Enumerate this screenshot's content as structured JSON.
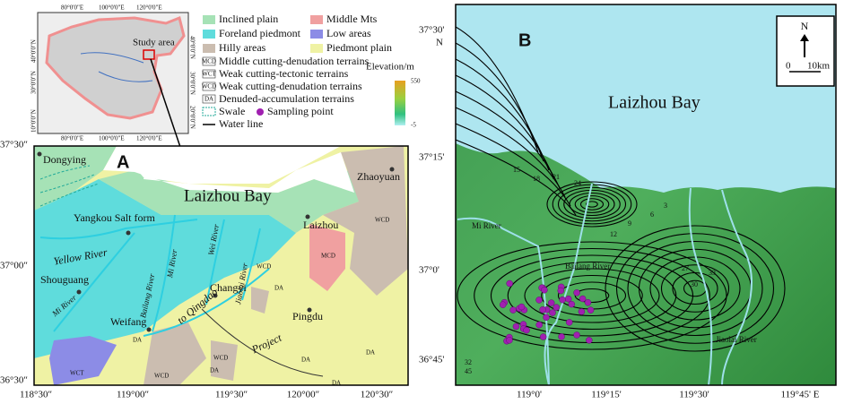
{
  "panel_a": {
    "label": "A",
    "inset": {
      "study_area": "Study area",
      "lon_labels": [
        "80°0'0\"E",
        "100°0'0\"E",
        "120°0'0\"E"
      ],
      "lat_labels": [
        "40°0'0\"N",
        "30°0'0\"N",
        "20°0'0\"N",
        "10°0'0\"N"
      ]
    },
    "legend": {
      "items": [
        "Inclined plain",
        "Middle Mts",
        "Foreland piedmont",
        "Low areas",
        "Hilly areas",
        "Piedmont plain",
        "Middle cutting-denudation terrains",
        "Weak cutting-tectonic terrains",
        "Weak cutting-denudation terrains",
        "Denuded-accumulation terrains",
        "Swale",
        "Sampling point",
        "Water line"
      ],
      "codes": [
        "MCD",
        "WCT",
        "WCD",
        "DA"
      ],
      "elevation_title": "Elevation/m",
      "elevation_max": "550",
      "elevation_min": "-5"
    },
    "places": [
      "Dongying",
      "Yangkou Salt form",
      "Laizhou Bay",
      "Laizhou",
      "Zhaoyuan",
      "Shouguang",
      "Changyi",
      "Weifang",
      "Pingdu"
    ],
    "rivers": [
      "Yellow River",
      "Mi River",
      "Bailang River",
      "Mi River",
      "Wei River",
      "Jiaolai River",
      "to Qingdao",
      "Project"
    ],
    "units": [
      "MCD",
      "WCD",
      "DA",
      "DA",
      "WCD",
      "WCT",
      "WCD",
      "DA",
      "DA",
      "DA",
      "DA",
      "WCD"
    ],
    "lat_labels": [
      "37°30″",
      "37°00″",
      "36°30″"
    ],
    "lon_labels": [
      "118°30″",
      "119°00″",
      "119°30″",
      "120°00″",
      "120°30″"
    ]
  },
  "panel_b": {
    "label": "B",
    "bay": "Laizhou Bay",
    "rivers": [
      "Mi River",
      "Bailang River",
      "Jiaolai River"
    ],
    "north": "N",
    "scale_start": "0",
    "scale_end": "10km",
    "contour_labels": [
      "15",
      "18",
      "21",
      "24",
      "12",
      "9",
      "6",
      "3",
      "30",
      "33",
      "27",
      "32",
      "45"
    ],
    "lat_labels": [
      "37°30'",
      "N",
      "37°15'",
      "37°0'",
      "36°45'"
    ],
    "lon_labels": [
      "119°0'",
      "119°15'",
      "119°30'",
      "119°45' E"
    ]
  }
}
